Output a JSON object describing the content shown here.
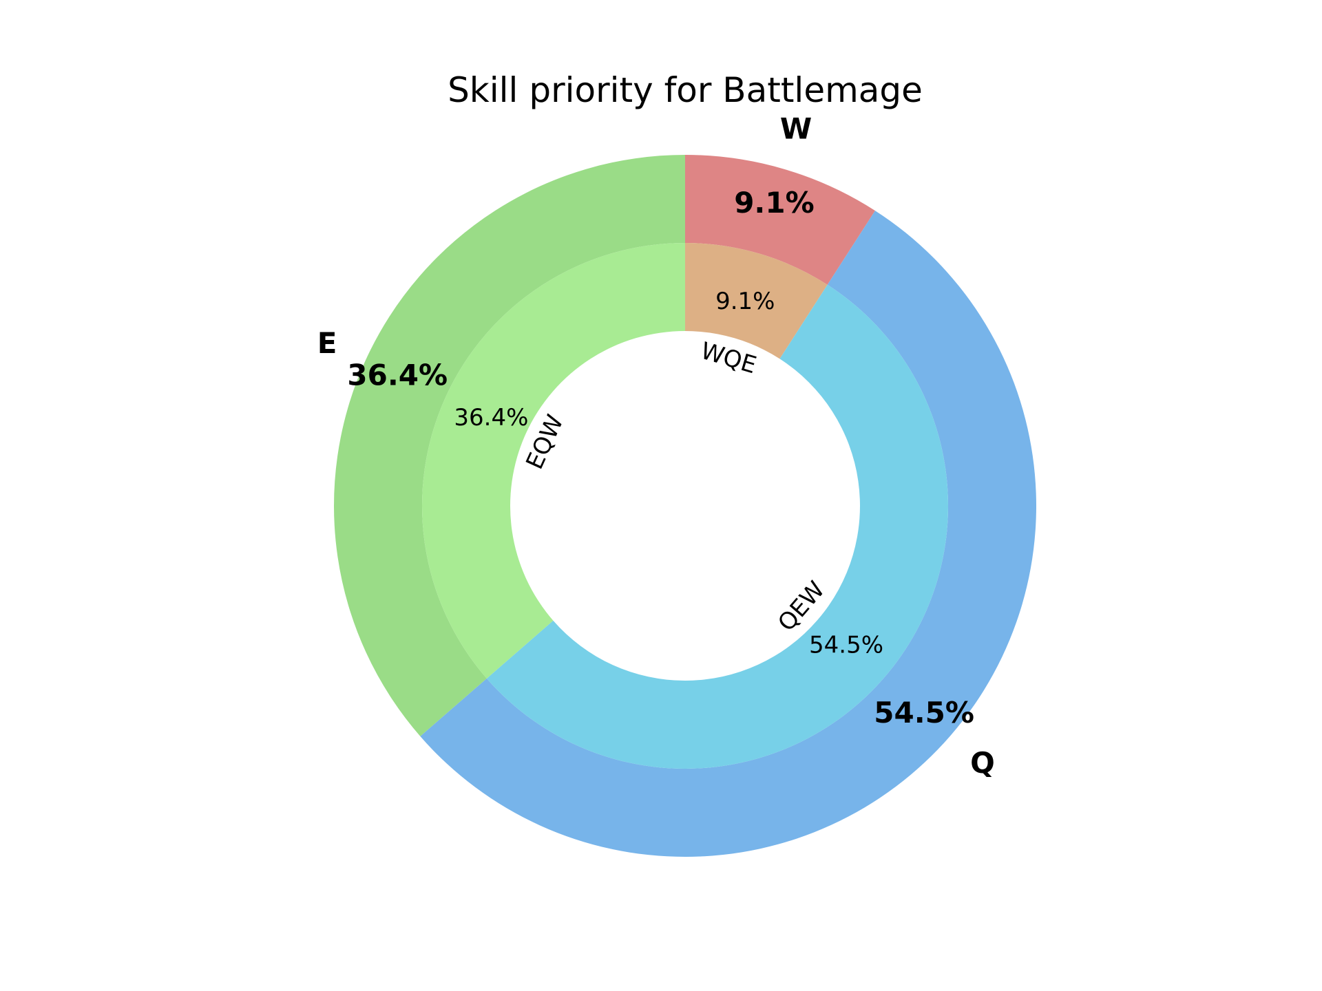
{
  "chart_data": {
    "type": "pie",
    "variant": "nested-donut",
    "title": "Skill priority for Battlemage",
    "outer_ring": {
      "categories": [
        "W",
        "Q",
        "E"
      ],
      "values": [
        9.1,
        54.5,
        36.4
      ],
      "labels_pct": [
        "9.1%",
        "54.5%",
        "36.4%"
      ],
      "colors": [
        "#de8585",
        "#77b4ea",
        "#9adc87"
      ]
    },
    "inner_ring": {
      "categories": [
        "WQE",
        "QEW",
        "EQW"
      ],
      "values": [
        9.1,
        54.5,
        36.4
      ],
      "labels_pct": [
        "9.1%",
        "54.5%",
        "36.4%"
      ],
      "colors": [
        "#ddb085",
        "#77d0e8",
        "#a8eb93"
      ]
    },
    "start_angle": "90 (top)",
    "direction": "clockwise",
    "legend": "none"
  }
}
